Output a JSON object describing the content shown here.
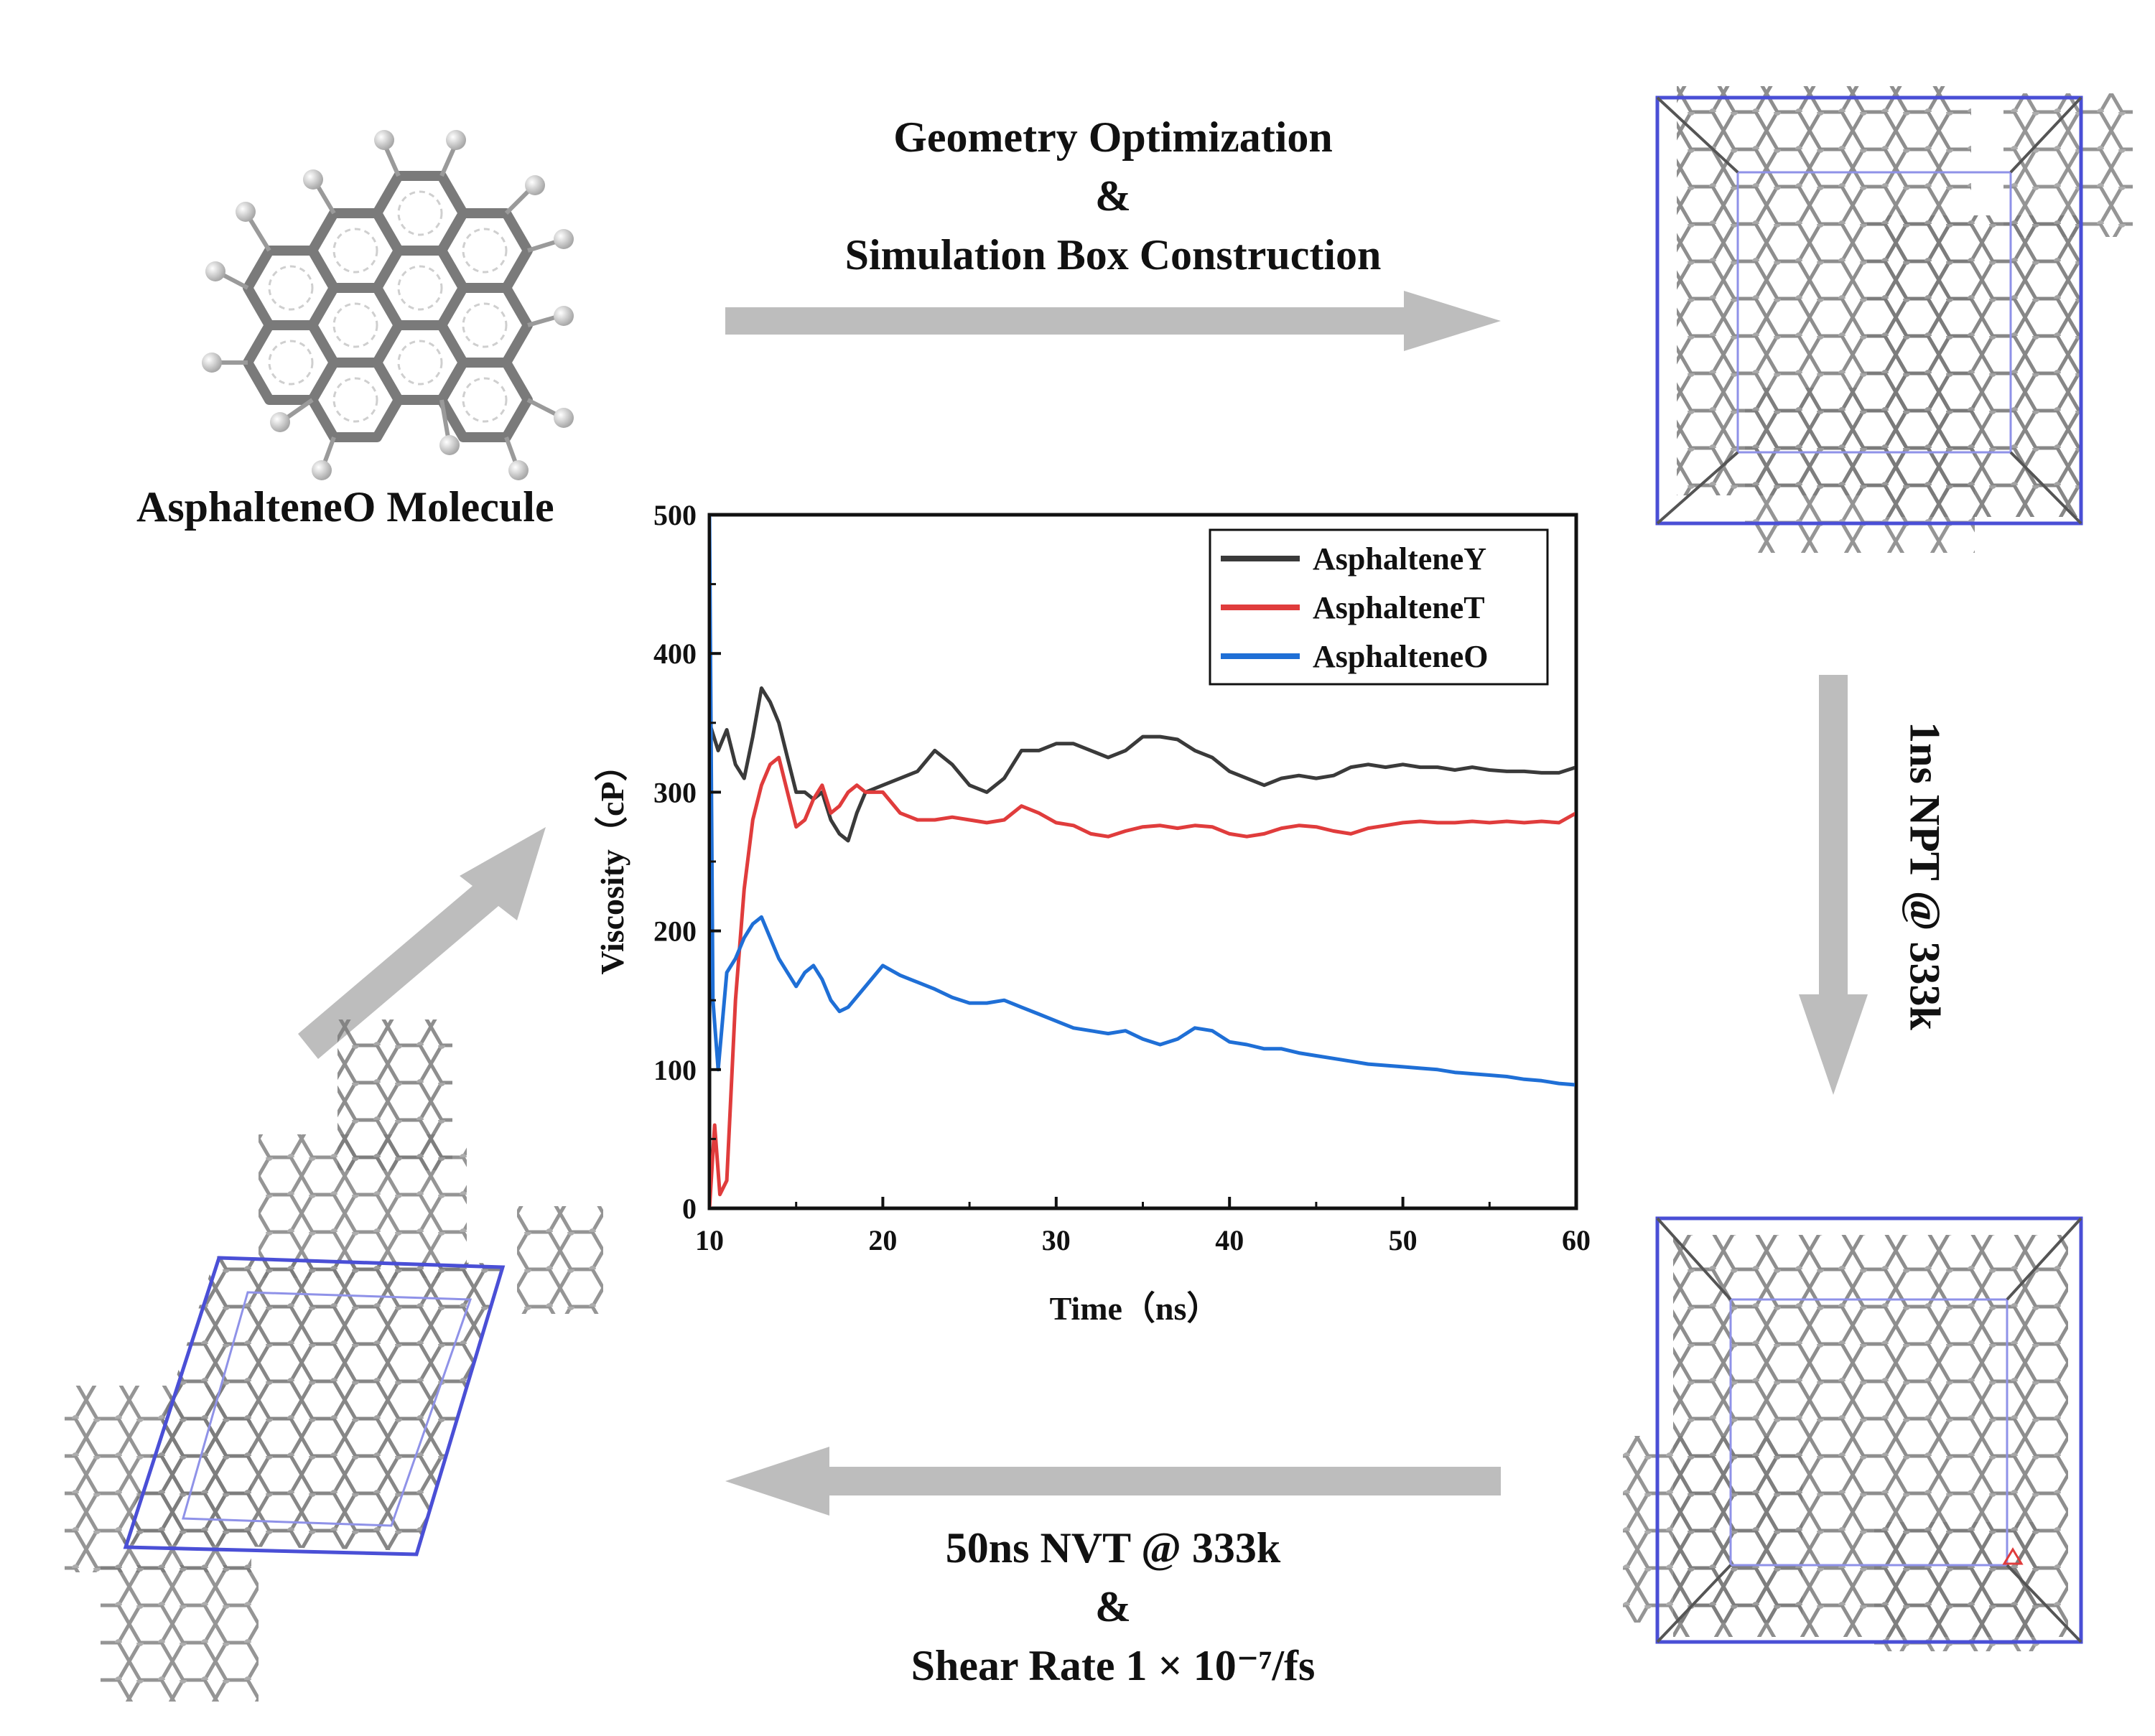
{
  "workflow": {
    "molecule_caption": "AsphalteneO Molecule",
    "top_arrow_label": [
      "Geometry Optimization",
      "&",
      "Simulation Box Construction"
    ],
    "right_arrow_label": "1ns NPT @ 333k",
    "bottom_arrow_label": [
      "50ns NVT @ 333k",
      "&",
      "Shear Rate 1 × 10⁻⁷/fs"
    ],
    "box_color": "#4a4fd6",
    "arrow_color": "#bdbdbd"
  },
  "chart_data": {
    "type": "line",
    "title": "",
    "xlabel": "Time（ns）",
    "ylabel": "Viscosity（cP）",
    "xlim": [
      10,
      60
    ],
    "ylim": [
      0,
      500
    ],
    "xticks": [
      10,
      20,
      30,
      40,
      50,
      60
    ],
    "yticks": [
      0,
      100,
      200,
      300,
      400,
      500
    ],
    "legend_position": "top-right",
    "series": [
      {
        "name": "AsphalteneY",
        "color": "#3a3a3a",
        "x": [
          10,
          10.5,
          11,
          11.5,
          12,
          12.5,
          13,
          13.5,
          14,
          14.5,
          15,
          15.5,
          16,
          16.5,
          17,
          17.5,
          18,
          18.5,
          19,
          20,
          21,
          22,
          23,
          24,
          25,
          26,
          27,
          28,
          29,
          30,
          31,
          32,
          33,
          34,
          35,
          36,
          37,
          38,
          39,
          40,
          41,
          42,
          43,
          44,
          45,
          46,
          47,
          48,
          49,
          50,
          51,
          52,
          53,
          54,
          55,
          56,
          57,
          58,
          59,
          60
        ],
        "y": [
          350,
          330,
          345,
          320,
          310,
          340,
          375,
          365,
          350,
          325,
          300,
          300,
          295,
          300,
          280,
          270,
          265,
          285,
          300,
          305,
          310,
          315,
          330,
          320,
          305,
          300,
          310,
          330,
          330,
          335,
          335,
          330,
          325,
          330,
          340,
          340,
          338,
          330,
          325,
          315,
          310,
          305,
          310,
          312,
          310,
          312,
          318,
          320,
          318,
          320,
          318,
          318,
          316,
          318,
          316,
          315,
          315,
          314,
          314,
          318
        ]
      },
      {
        "name": "AsphalteneT",
        "color": "#e03c3c",
        "x": [
          10,
          10.3,
          10.6,
          11,
          11.5,
          12,
          12.5,
          13,
          13.5,
          14,
          14.5,
          15,
          15.5,
          16,
          16.5,
          17,
          17.5,
          18,
          18.5,
          19,
          20,
          21,
          22,
          23,
          24,
          25,
          26,
          27,
          28,
          29,
          30,
          31,
          32,
          33,
          34,
          35,
          36,
          37,
          38,
          39,
          40,
          41,
          42,
          43,
          44,
          45,
          46,
          47,
          48,
          49,
          50,
          51,
          52,
          53,
          54,
          55,
          56,
          57,
          58,
          59,
          60
        ],
        "y": [
          0,
          60,
          10,
          20,
          150,
          230,
          280,
          305,
          320,
          325,
          300,
          275,
          280,
          295,
          305,
          285,
          290,
          300,
          305,
          300,
          300,
          285,
          280,
          280,
          282,
          280,
          278,
          280,
          290,
          285,
          278,
          276,
          270,
          268,
          272,
          275,
          276,
          274,
          276,
          275,
          270,
          268,
          270,
          274,
          276,
          275,
          272,
          270,
          274,
          276,
          278,
          279,
          278,
          278,
          279,
          278,
          279,
          278,
          279,
          278,
          285
        ]
      },
      {
        "name": "AsphalteneO",
        "color": "#1f6fd6",
        "x": [
          10,
          10.2,
          10.5,
          11,
          11.5,
          12,
          12.5,
          13,
          13.5,
          14,
          14.5,
          15,
          15.5,
          16,
          16.5,
          17,
          17.5,
          18,
          19,
          20,
          21,
          22,
          23,
          24,
          25,
          26,
          27,
          28,
          29,
          30,
          31,
          32,
          33,
          34,
          35,
          36,
          37,
          38,
          39,
          40,
          41,
          42,
          43,
          44,
          45,
          46,
          47,
          48,
          49,
          50,
          51,
          52,
          53,
          54,
          55,
          56,
          57,
          58,
          59,
          60
        ],
        "y": [
          500,
          150,
          100,
          170,
          180,
          195,
          205,
          210,
          195,
          180,
          170,
          160,
          170,
          175,
          165,
          150,
          142,
          145,
          160,
          175,
          168,
          163,
          158,
          152,
          148,
          148,
          150,
          145,
          140,
          135,
          130,
          128,
          126,
          128,
          122,
          118,
          122,
          130,
          128,
          120,
          118,
          115,
          115,
          112,
          110,
          108,
          106,
          104,
          103,
          102,
          101,
          100,
          98,
          97,
          96,
          95,
          93,
          92,
          90,
          89
        ]
      }
    ]
  }
}
